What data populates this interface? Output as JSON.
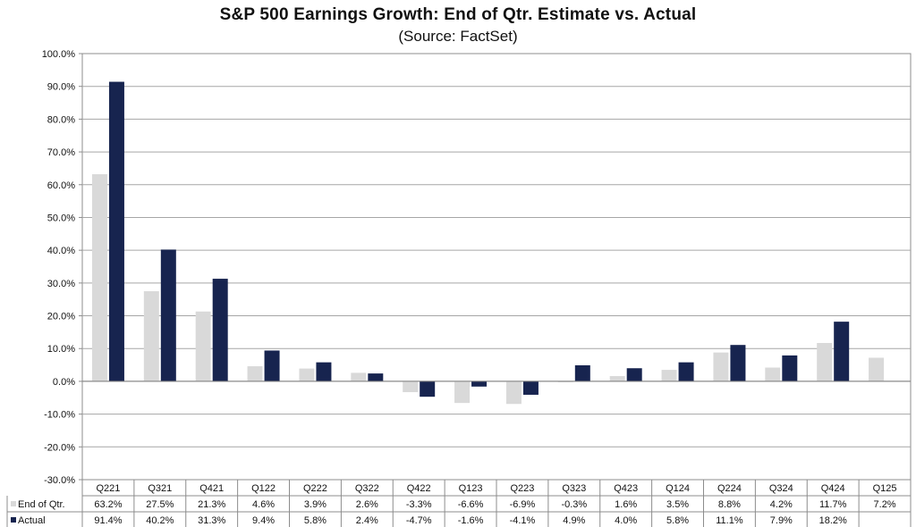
{
  "colors": {
    "estimate": "#d9d9d9",
    "actual": "#17244f",
    "grid": "#a6a6a6"
  },
  "chart_data": {
    "type": "bar",
    "title": "S&P 500 Earnings Growth: End of Qtr. Estimate vs. Actual",
    "subtitle": "(Source: FactSet)",
    "categories": [
      "Q221",
      "Q321",
      "Q421",
      "Q122",
      "Q222",
      "Q322",
      "Q422",
      "Q123",
      "Q223",
      "Q323",
      "Q423",
      "Q124",
      "Q224",
      "Q324",
      "Q424",
      "Q125"
    ],
    "series": [
      {
        "name": "End of Qtr.",
        "values": [
          63.2,
          27.5,
          21.3,
          4.6,
          3.9,
          2.6,
          -3.3,
          -6.6,
          -6.9,
          -0.3,
          1.6,
          3.5,
          8.8,
          4.2,
          11.7,
          7.2
        ],
        "labels": [
          "63.2%",
          "27.5%",
          "21.3%",
          "4.6%",
          "3.9%",
          "2.6%",
          "-3.3%",
          "-6.6%",
          "-6.9%",
          "-0.3%",
          "1.6%",
          "3.5%",
          "8.8%",
          "4.2%",
          "11.7%",
          "7.2%"
        ]
      },
      {
        "name": "Actual",
        "values": [
          91.4,
          40.2,
          31.3,
          9.4,
          5.8,
          2.4,
          -4.7,
          -1.6,
          -4.1,
          4.9,
          4.0,
          5.8,
          11.1,
          7.9,
          18.2,
          null
        ],
        "labels": [
          "91.4%",
          "40.2%",
          "31.3%",
          "9.4%",
          "5.8%",
          "2.4%",
          "-4.7%",
          "-1.6%",
          "-4.1%",
          "4.9%",
          "4.0%",
          "5.8%",
          "11.1%",
          "7.9%",
          "18.2%",
          ""
        ]
      }
    ],
    "ylim": [
      -30,
      100
    ],
    "yticks": [
      100,
      90,
      80,
      70,
      60,
      50,
      40,
      30,
      20,
      10,
      0,
      -10,
      -20,
      -30
    ],
    "ytick_labels": [
      "100.0%",
      "90.0%",
      "80.0%",
      "70.0%",
      "60.0%",
      "50.0%",
      "40.0%",
      "30.0%",
      "20.0%",
      "10.0%",
      "0.0%",
      "-10.0%",
      "-20.0%",
      "-30.0%"
    ],
    "grid": true,
    "legend": "data table below chart"
  }
}
